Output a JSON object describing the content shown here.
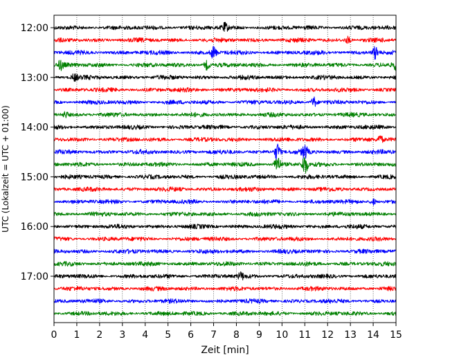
{
  "chart_data": {
    "type": "line",
    "title": "",
    "xlabel": "Zeit  [min]",
    "ylabel": "UTC (Lokalzeit = UTC + 01:00)",
    "xlim": [
      0,
      15
    ],
    "x_ticks": [
      0,
      1,
      2,
      3,
      4,
      5,
      6,
      7,
      8,
      9,
      10,
      11,
      12,
      13,
      14,
      15
    ],
    "x_tick_labels": [
      "0",
      "1",
      "2",
      "3",
      "4",
      "5",
      "6",
      "7",
      "8",
      "9",
      "10",
      "11",
      "12",
      "13",
      "14",
      "15"
    ],
    "y_tick_labels": [
      "12:00",
      "13:00",
      "14:00",
      "15:00",
      "16:00",
      "17:00"
    ],
    "y_tick_trace_index": [
      0,
      4,
      8,
      12,
      16,
      20
    ],
    "grid": "vertical dotted",
    "trace_colors": [
      "#000000",
      "#ff0000",
      "#0000ff",
      "#008000"
    ],
    "series": [
      {
        "start": "12:00",
        "color": "#000000",
        "events": [
          {
            "t": 7.5,
            "a": 0.6
          }
        ]
      },
      {
        "start": "12:15",
        "color": "#ff0000",
        "events": [
          {
            "t": 12.9,
            "a": 0.5
          }
        ]
      },
      {
        "start": "12:30",
        "color": "#0000ff",
        "events": [
          {
            "t": 7.0,
            "a": 1.0
          },
          {
            "t": 14.1,
            "a": 1.0
          }
        ]
      },
      {
        "start": "12:45",
        "color": "#008000",
        "events": [
          {
            "t": 0.3,
            "a": 0.7
          },
          {
            "t": 6.7,
            "a": 0.7
          },
          {
            "t": 15.0,
            "a": 0.7
          }
        ]
      },
      {
        "start": "13:00",
        "color": "#000000",
        "events": [
          {
            "t": 0.9,
            "a": 0.5
          }
        ]
      },
      {
        "start": "13:15",
        "color": "#ff0000",
        "events": []
      },
      {
        "start": "13:30",
        "color": "#0000ff",
        "events": [
          {
            "t": 11.4,
            "a": 0.8
          }
        ]
      },
      {
        "start": "13:45",
        "color": "#008000",
        "events": [
          {
            "t": 0.5,
            "a": 0.4
          }
        ]
      },
      {
        "start": "14:00",
        "color": "#000000",
        "events": []
      },
      {
        "start": "14:15",
        "color": "#ff0000",
        "events": [
          {
            "t": 14.3,
            "a": 0.6
          }
        ]
      },
      {
        "start": "14:30",
        "color": "#0000ff",
        "events": [
          {
            "t": 9.8,
            "a": 1.4
          },
          {
            "t": 11.0,
            "a": 1.0
          }
        ]
      },
      {
        "start": "14:45",
        "color": "#008000",
        "events": [
          {
            "t": 9.8,
            "a": 1.5
          },
          {
            "t": 11.0,
            "a": 1.6
          }
        ]
      },
      {
        "start": "15:00",
        "color": "#000000",
        "events": []
      },
      {
        "start": "15:15",
        "color": "#ff0000",
        "events": []
      },
      {
        "start": "15:30",
        "color": "#0000ff",
        "events": [
          {
            "t": 14.0,
            "a": 0.5
          }
        ]
      },
      {
        "start": "15:45",
        "color": "#008000",
        "events": []
      },
      {
        "start": "16:00",
        "color": "#000000",
        "events": []
      },
      {
        "start": "16:15",
        "color": "#ff0000",
        "events": []
      },
      {
        "start": "16:30",
        "color": "#0000ff",
        "events": []
      },
      {
        "start": "16:45",
        "color": "#008000",
        "events": []
      },
      {
        "start": "17:00",
        "color": "#000000",
        "events": [
          {
            "t": 8.2,
            "a": 0.5
          }
        ]
      },
      {
        "start": "17:15",
        "color": "#ff0000",
        "events": []
      },
      {
        "start": "17:30",
        "color": "#0000ff",
        "events": []
      },
      {
        "start": "17:45",
        "color": "#008000",
        "events": []
      }
    ]
  }
}
